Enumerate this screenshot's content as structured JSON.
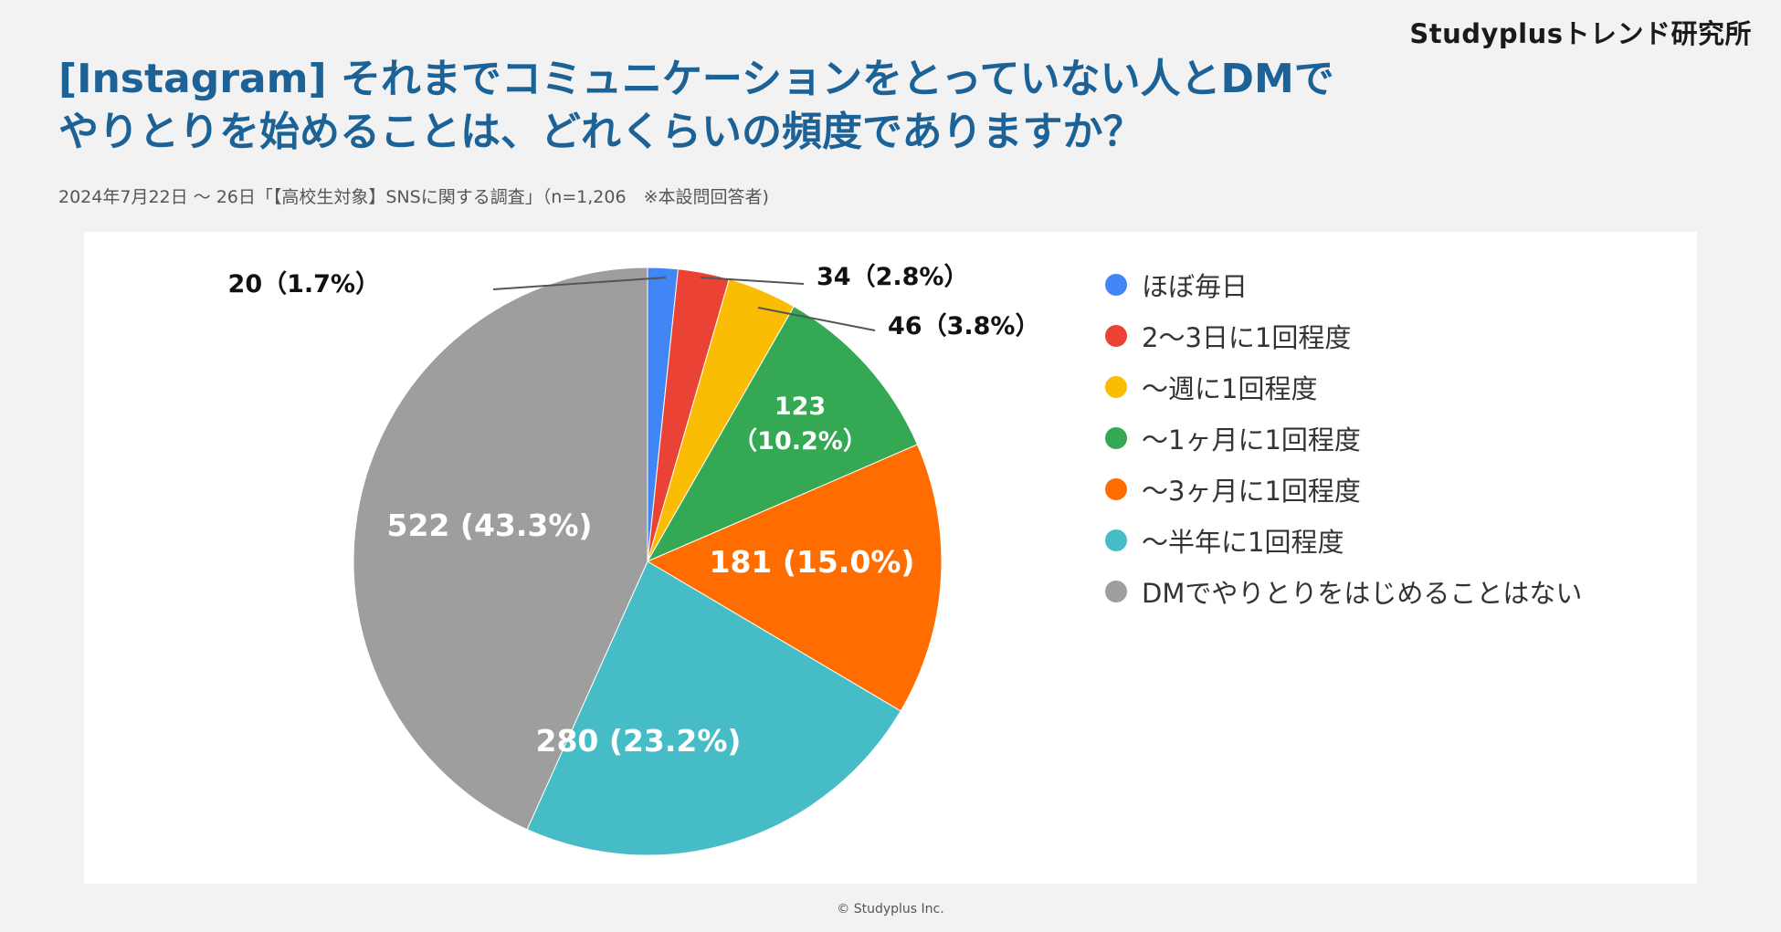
{
  "header": {
    "brand": "Studyplusトレンド研究所",
    "title_line1": "[Instagram] それまでコミュニケーションをとっていない人とDMで",
    "title_line2": "やりとりを始めることは、どれくらいの頻度でありますか？",
    "subtitle": "2024年7月22日 〜 26日「【高校生対象】SNSに関する調査」（n=1,206　※本設問回答者)"
  },
  "footer": {
    "copyright": "© Studyplus Inc."
  },
  "chart_data": {
    "type": "pie",
    "title": "",
    "start_angle_deg": 0,
    "direction": "clockwise",
    "legend_position": "right",
    "slices": [
      {
        "label": "ほぼ毎日",
        "value": 20,
        "percent": 1.7,
        "color": "#4285f4",
        "data_label": "20（1.7%）",
        "label_placement": "outside"
      },
      {
        "label": "2〜3日に1回程度",
        "value": 34,
        "percent": 2.8,
        "color": "#ea4335",
        "data_label": "34（2.8%）",
        "label_placement": "outside"
      },
      {
        "label": "〜週に1回程度",
        "value": 46,
        "percent": 3.8,
        "color": "#fbbc04",
        "data_label": "46（3.8%）",
        "label_placement": "outside"
      },
      {
        "label": "〜1ヶ月に1回程度",
        "value": 123,
        "percent": 10.2,
        "color": "#34a853",
        "data_label": "123\n（10.2%）",
        "label_placement": "inside"
      },
      {
        "label": "〜3ヶ月に1回程度",
        "value": 181,
        "percent": 15.0,
        "color": "#ff6d01",
        "data_label": "181 (15.0%)",
        "label_placement": "inside"
      },
      {
        "label": "〜半年に1回程度",
        "value": 280,
        "percent": 23.2,
        "color": "#46bdc6",
        "data_label": "280 (23.2%)",
        "label_placement": "inside"
      },
      {
        "label": "DMでやりとりをはじめることはない",
        "value": 522,
        "percent": 43.3,
        "color": "#9e9e9e",
        "data_label": "522 (43.3%)",
        "label_placement": "inside"
      }
    ]
  }
}
